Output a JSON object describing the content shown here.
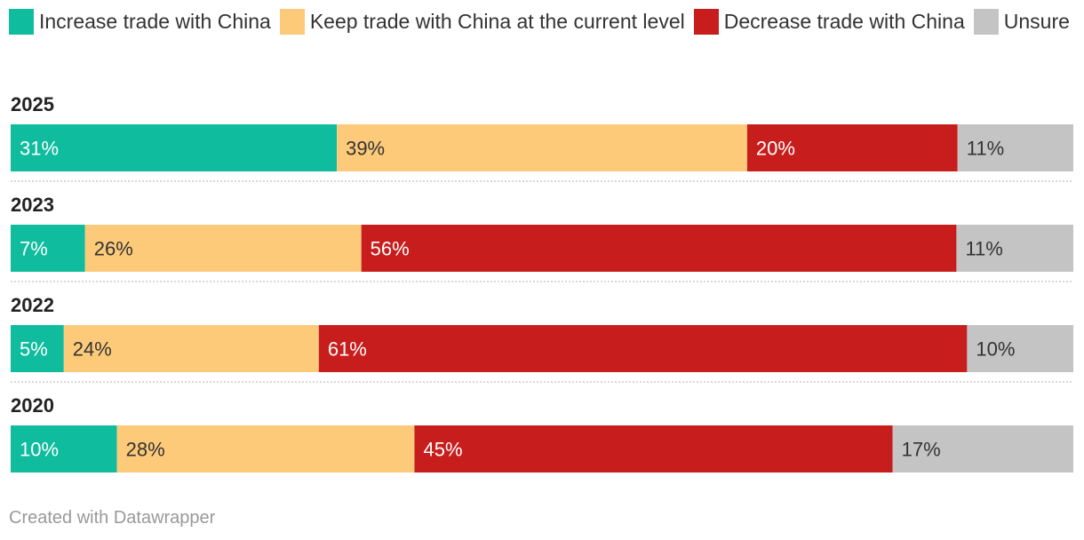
{
  "footer": "Created with Datawrapper",
  "chart_data": {
    "type": "bar",
    "orientation": "horizontal",
    "stacked": true,
    "legend_position": "top-left",
    "categories": [
      "2025",
      "2023",
      "2022",
      "2020"
    ],
    "series": [
      {
        "name": "Increase trade with China",
        "color": "#0fbc9e",
        "label_color": "#ffffff",
        "values": [
          31,
          7,
          5,
          10
        ]
      },
      {
        "name": "Keep trade with China at the current level",
        "color": "#fdca7a",
        "label_color": "#333333",
        "values": [
          39,
          26,
          24,
          28
        ]
      },
      {
        "name": "Decrease trade with China",
        "color": "#c71e1d",
        "label_color": "#ffffff",
        "values": [
          20,
          56,
          61,
          45
        ]
      },
      {
        "name": "Unsure",
        "color": "#c4c4c4",
        "label_color": "#333333",
        "values": [
          11,
          11,
          10,
          17
        ]
      }
    ],
    "value_suffix": "%"
  }
}
